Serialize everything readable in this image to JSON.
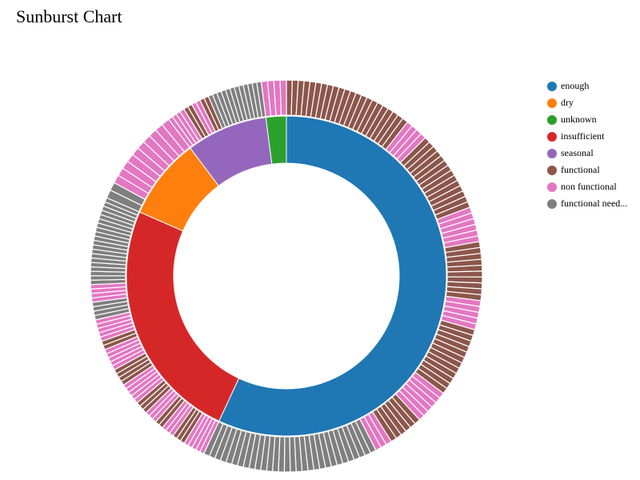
{
  "chart_data": {
    "type": "sunburst",
    "title": "Sunburst Chart",
    "legend_placement": "right",
    "colors": {
      "enough": "#1f77b4",
      "dry": "#ff7f0e",
      "unknown": "#2ca02c",
      "insufficient": "#d62728",
      "seasonal": "#9467bd",
      "functional": "#8c564b",
      "non functional": "#e377c2",
      "functional needs repair": "#7f7f7f"
    },
    "legend": [
      {
        "key": "enough",
        "label": "enough"
      },
      {
        "key": "dry",
        "label": "dry"
      },
      {
        "key": "unknown",
        "label": "unknown"
      },
      {
        "key": "insufficient",
        "label": "insufficient"
      },
      {
        "key": "seasonal",
        "label": "seasonal"
      },
      {
        "key": "functional",
        "label": "functional"
      },
      {
        "key": "non functional",
        "label": "non functional"
      },
      {
        "key": "functional needs repair",
        "label": "functional need..."
      }
    ],
    "inner_ring": [
      {
        "name": "enough",
        "value": 55.5
      },
      {
        "name": "insufficient",
        "value": 24.0
      },
      {
        "name": "dry",
        "value": 8.0
      },
      {
        "name": "seasonal",
        "value": 8.0
      },
      {
        "name": "unknown",
        "value": 2.0
      }
    ],
    "outer_ring": {
      "enough": [
        {
          "status": "functional",
          "count": 22
        },
        {
          "status": "non functional",
          "count": 4
        },
        {
          "status": "functional",
          "count": 14
        },
        {
          "status": "non functional",
          "count": 6
        },
        {
          "status": "functional",
          "count": 10
        },
        {
          "status": "non functional",
          "count": 5
        },
        {
          "status": "functional",
          "count": 12
        },
        {
          "status": "non functional",
          "count": 6
        },
        {
          "status": "functional",
          "count": 6
        },
        {
          "status": "non functional",
          "count": 3
        },
        {
          "status": "functional needs repair",
          "count": 12
        },
        {
          "status": "functional needs repair",
          "count": 18
        }
      ],
      "insufficient": [
        {
          "status": "non functional",
          "count": 5
        },
        {
          "status": "functional",
          "count": 3
        },
        {
          "status": "non functional",
          "count": 3
        },
        {
          "status": "functional",
          "count": 2
        },
        {
          "status": "non functional",
          "count": 3
        },
        {
          "status": "functional",
          "count": 3
        },
        {
          "status": "non functional",
          "count": 5
        },
        {
          "status": "functional",
          "count": 4
        },
        {
          "status": "non functional",
          "count": 5
        },
        {
          "status": "functional",
          "count": 2
        },
        {
          "status": "non functional",
          "count": 5
        },
        {
          "status": "functional needs repair",
          "count": 4
        },
        {
          "status": "non functional",
          "count": 4
        },
        {
          "status": "functional needs repair",
          "count": 20
        }
      ],
      "dry": [
        {
          "status": "functional needs repair",
          "count": 2
        },
        {
          "status": "non functional",
          "count": 10
        }
      ],
      "seasonal": [
        {
          "status": "non functional",
          "count": 4
        },
        {
          "status": "functional",
          "count": 2
        },
        {
          "status": "non functional",
          "count": 2
        },
        {
          "status": "functional",
          "count": 2
        },
        {
          "status": "functional needs repair",
          "count": 12
        }
      ],
      "unknown": [
        {
          "status": "non functional",
          "count": 4
        }
      ]
    }
  }
}
